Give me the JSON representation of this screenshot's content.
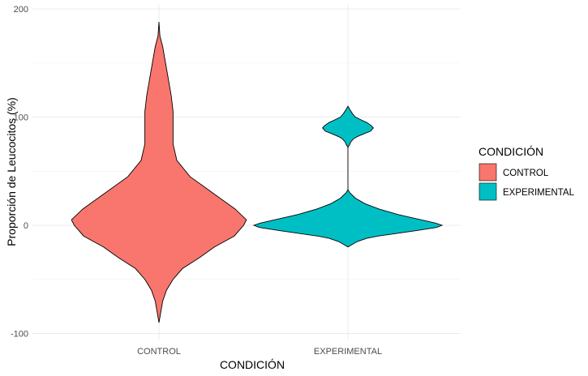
{
  "chart_data": {
    "type": "violin",
    "xlabel": "CONDICIÓN",
    "ylabel": "Proporción de Leucocitos (%)",
    "ylim": [
      -100,
      200
    ],
    "yticks": [
      -100,
      0,
      100,
      200
    ],
    "y_tick_labels": [
      "-100",
      "0",
      "100",
      "200"
    ],
    "grid": true,
    "legend": {
      "title": "CONDICIÓN",
      "position": "right"
    },
    "categories": [
      "CONTROL",
      "EXPERIMENTAL"
    ],
    "series": [
      {
        "name": "CONTROL",
        "color": "#F8766D",
        "range": [
          -90,
          188
        ],
        "density_profile": [
          [
            188,
            0.0
          ],
          [
            175,
            0.01
          ],
          [
            165,
            0.04
          ],
          [
            150,
            0.07
          ],
          [
            135,
            0.1
          ],
          [
            120,
            0.13
          ],
          [
            105,
            0.15
          ],
          [
            90,
            0.15
          ],
          [
            75,
            0.15
          ],
          [
            60,
            0.19
          ],
          [
            45,
            0.33
          ],
          [
            30,
            0.57
          ],
          [
            15,
            0.81
          ],
          [
            5,
            0.93
          ],
          [
            0,
            0.9
          ],
          [
            -10,
            0.8
          ],
          [
            -20,
            0.59
          ],
          [
            -30,
            0.43
          ],
          [
            -40,
            0.25
          ],
          [
            -50,
            0.15
          ],
          [
            -60,
            0.08
          ],
          [
            -70,
            0.04
          ],
          [
            -80,
            0.02
          ],
          [
            -90,
            0.0
          ]
        ]
      },
      {
        "name": "EXPERIMENTAL",
        "color": "#00BFC4",
        "range": [
          -20,
          110
        ],
        "density_profile": [
          [
            110,
            0.0
          ],
          [
            107,
            0.02
          ],
          [
            103,
            0.05
          ],
          [
            100,
            0.08
          ],
          [
            97,
            0.15
          ],
          [
            95,
            0.2
          ],
          [
            92,
            0.25
          ],
          [
            90,
            0.27
          ],
          [
            87,
            0.24
          ],
          [
            85,
            0.18
          ],
          [
            82,
            0.1
          ],
          [
            80,
            0.06
          ],
          [
            77,
            0.03
          ],
          [
            75,
            0.02
          ],
          [
            72,
            0.0
          ],
          [
            70,
            0.0
          ],
          [
            60,
            0.0
          ],
          [
            50,
            0.0
          ],
          [
            40,
            0.0
          ],
          [
            33,
            0.0
          ],
          [
            30,
            0.02
          ],
          [
            25,
            0.08
          ],
          [
            20,
            0.18
          ],
          [
            15,
            0.33
          ],
          [
            10,
            0.53
          ],
          [
            5,
            0.78
          ],
          [
            2,
            0.93
          ],
          [
            0,
            1.0
          ],
          [
            -2,
            0.94
          ],
          [
            -5,
            0.72
          ],
          [
            -8,
            0.48
          ],
          [
            -10,
            0.32
          ],
          [
            -12,
            0.2
          ],
          [
            -15,
            0.1
          ],
          [
            -18,
            0.04
          ],
          [
            -20,
            0.0
          ]
        ]
      }
    ]
  }
}
